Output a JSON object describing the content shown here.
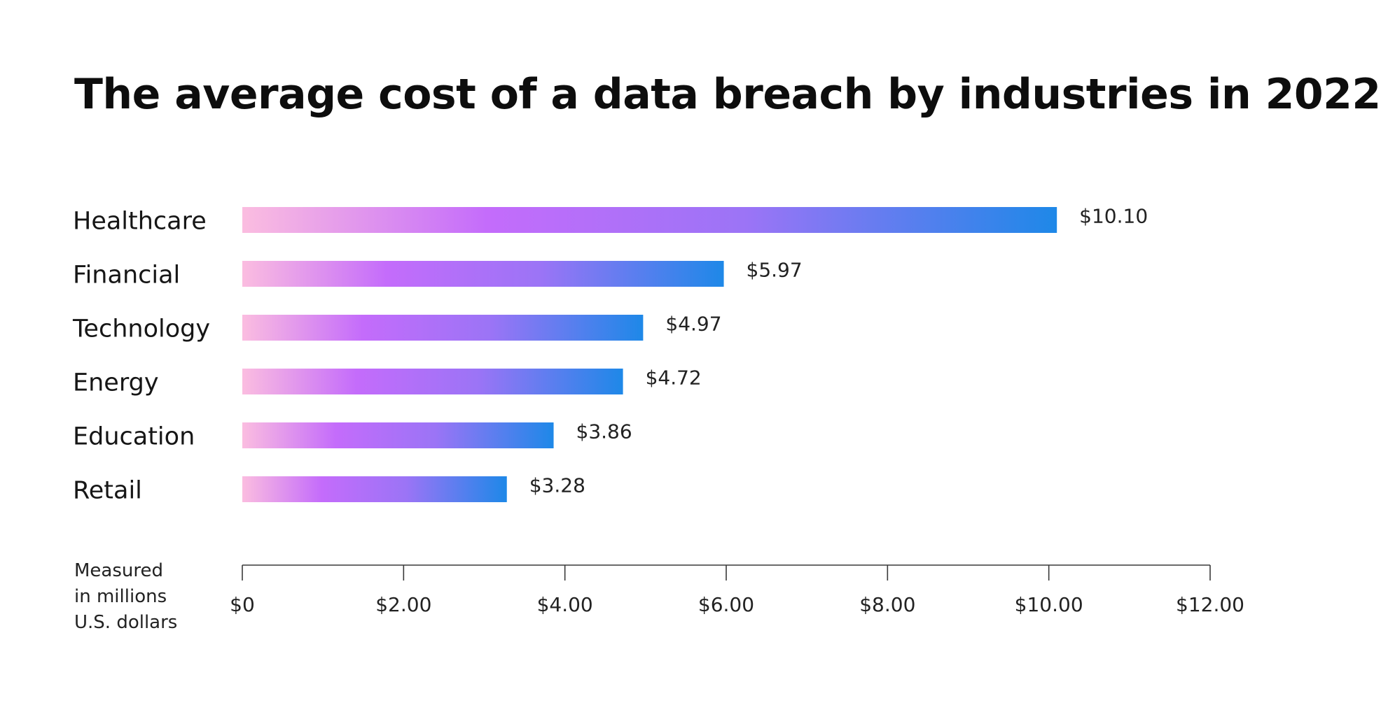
{
  "chart_data": {
    "type": "bar",
    "orientation": "horizontal",
    "title": "The average cost of a data breach by industries in 2022",
    "categories": [
      "Healthcare",
      "Financial",
      "Technology",
      "Energy",
      "Education",
      "Retail"
    ],
    "values": [
      10.1,
      5.97,
      4.97,
      4.72,
      3.86,
      3.28
    ],
    "value_labels": [
      "$10.10",
      "$5.97",
      "$4.97",
      "$4.72",
      "$3.86",
      "$3.28"
    ],
    "xlim": [
      0,
      12
    ],
    "xticks": [
      0,
      2,
      4,
      6,
      8,
      10,
      12
    ],
    "xtick_labels": [
      "$0",
      "$2.00",
      "$4.00",
      "$6.00",
      "$8.00",
      "$10.00",
      "$12.00"
    ],
    "unit_note": [
      "Measured",
      "in millions",
      "U.S. dollars"
    ],
    "grid": false,
    "legend": "none",
    "colors": {
      "gradient_start": "#fbbde0",
      "gradient_mid": "#c46cfb",
      "gradient_end": "#1e88e8",
      "axis": "#3a3a3a"
    }
  }
}
